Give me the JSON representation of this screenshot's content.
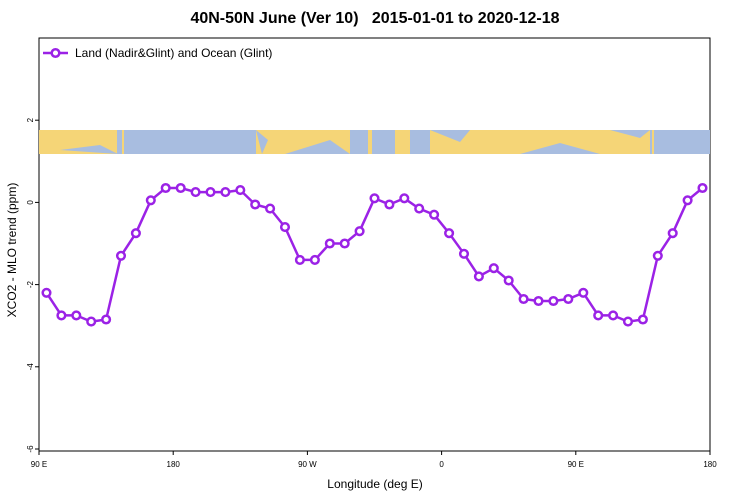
{
  "chart_data": {
    "type": "line",
    "title": "40N-50N June (Ver 10)   2015-01-01 to 2020-12-18",
    "xlabel": "Longitude (deg E)",
    "ylabel": "XCO2 - MLO trend (ppm)",
    "xlim": [
      90,
      540
    ],
    "ylim": [
      -6,
      4
    ],
    "x_ticks": [
      {
        "value": 90,
        "label": "90 E"
      },
      {
        "value": 180,
        "label": "180"
      },
      {
        "value": 270,
        "label": "90 W"
      },
      {
        "value": 360,
        "label": "0"
      },
      {
        "value": 450,
        "label": "90 E"
      },
      {
        "value": 540,
        "label": "180"
      }
    ],
    "y_ticks": [
      {
        "value": -6,
        "label": "-6"
      },
      {
        "value": -4,
        "label": "-4"
      },
      {
        "value": -2,
        "label": "-2"
      },
      {
        "value": 0,
        "label": "0"
      },
      {
        "value": 2,
        "label": "2"
      }
    ],
    "grid": false,
    "legend_position": "top-left",
    "series": [
      {
        "name": "Land (Nadir&Glint) and Ocean (Glint)",
        "color": "#9b22e6",
        "x": [
          95,
          105,
          115,
          125,
          135,
          145,
          155,
          165,
          175,
          185,
          195,
          205,
          215,
          225,
          235,
          245,
          255,
          265,
          275,
          285,
          295,
          305,
          315,
          325,
          335,
          345,
          355,
          365,
          375,
          385,
          395,
          405,
          415,
          425,
          435,
          445,
          455,
          465,
          475,
          485,
          495,
          505,
          515,
          525,
          535
        ],
        "y": [
          -2.2,
          -2.75,
          -2.75,
          -2.9,
          -2.85,
          -1.3,
          -0.75,
          0.05,
          0.35,
          0.35,
          0.25,
          0.25,
          0.25,
          0.3,
          -0.05,
          -0.15,
          -0.6,
          -1.4,
          -1.4,
          -1.0,
          -1.0,
          -0.7,
          0.1,
          -0.05,
          0.1,
          -0.15,
          -0.3,
          -0.75,
          -1.25,
          -1.8,
          -1.6,
          -1.9,
          -2.35,
          -2.4,
          -2.4,
          -2.35,
          -2.2,
          -2.75,
          -2.75,
          -2.9,
          -2.85,
          -1.3,
          -0.75,
          0.05,
          0.35
        ]
      }
    ],
    "map_strip": {
      "land_color": "#f5d577",
      "ocean_color": "#a8bde0"
    }
  }
}
